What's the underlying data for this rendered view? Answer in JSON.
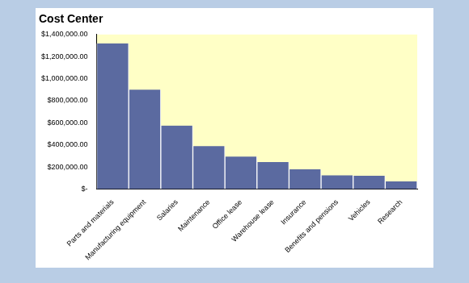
{
  "chart_data": {
    "type": "bar",
    "title": "Cost Center",
    "categories": [
      "Parts and materials",
      "Manufacturing equipment",
      "Salaries",
      "Maintenance",
      "Office lease",
      "Warehouse lease",
      "Insurance",
      "Benefits and pensions",
      "Vehicles",
      "Research"
    ],
    "values": [
      1320000,
      900000,
      575000,
      390000,
      295000,
      245000,
      180000,
      125000,
      120000,
      70000
    ],
    "color": "#5b6aa0",
    "ylim": [
      0,
      1400000
    ],
    "yticks": [
      {
        "value": 0,
        "label": "$-"
      },
      {
        "value": 200000,
        "label": "$200,000.00"
      },
      {
        "value": 400000,
        "label": "$400,000.00"
      },
      {
        "value": 600000,
        "label": "$600,000.00"
      },
      {
        "value": 800000,
        "label": "$800,000.00"
      },
      {
        "value": 1000000,
        "label": "$1,000,000.00"
      },
      {
        "value": 1200000,
        "label": "$1,200,000.00"
      },
      {
        "value": 1400000,
        "label": "$1,400,000.00"
      }
    ],
    "grid": false
  }
}
